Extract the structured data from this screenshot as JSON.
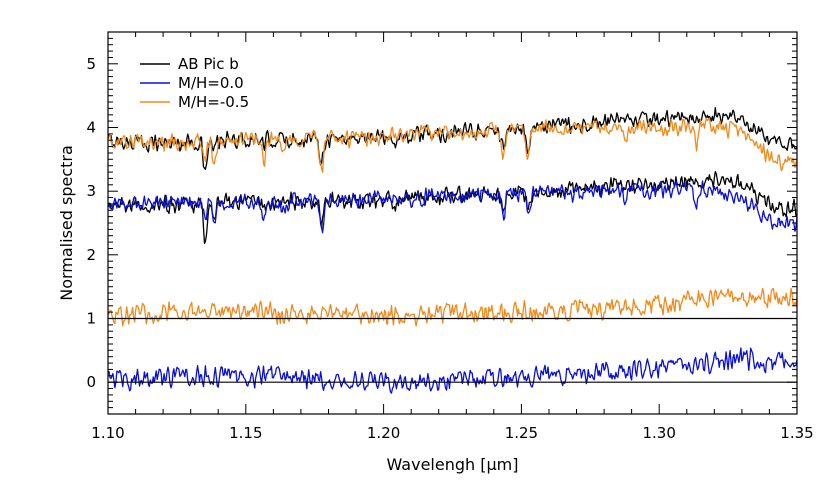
{
  "chart_data": {
    "type": "line",
    "xlabel": "Wavelengh [μm]",
    "ylabel": "Normalised spectra",
    "xlim": [
      1.1,
      1.35
    ],
    "ylim": [
      -0.5,
      5.5
    ],
    "x_ticks": [
      "1.10",
      "1.15",
      "1.20",
      "1.25",
      "1.30",
      "1.35"
    ],
    "y_ticks": [
      "0",
      "1",
      "2",
      "3",
      "4",
      "5"
    ],
    "grid": false,
    "legend_position": "top-left",
    "colors": {
      "object": "#000000",
      "solar": "#0a10d8",
      "low": "#f08a1c",
      "frame": "#000000"
    },
    "legend": [
      {
        "name": "AB Pic b",
        "color": "#000000"
      },
      {
        "name": "M/H=0.0",
        "color": "#0a10d8"
      },
      {
        "name": "M/H=-0.5",
        "color": "#f08a1c"
      }
    ],
    "reference_lines": [
      0,
      1
    ],
    "series": [
      {
        "name": "AB Pic b",
        "color": "#000000",
        "group": "upper",
        "profile": [
          [
            1.1,
            3.78
          ],
          [
            1.12,
            3.76
          ],
          [
            1.15,
            3.8
          ],
          [
            1.18,
            3.82
          ],
          [
            1.2,
            3.85
          ],
          [
            1.22,
            3.9
          ],
          [
            1.25,
            3.98
          ],
          [
            1.28,
            4.08
          ],
          [
            1.3,
            4.12
          ],
          [
            1.32,
            4.18
          ],
          [
            1.33,
            4.1
          ],
          [
            1.335,
            3.95
          ],
          [
            1.34,
            3.78
          ],
          [
            1.35,
            3.72
          ]
        ],
        "dips": [
          [
            1.1352,
            0.55
          ],
          [
            1.1385,
            0.15
          ],
          [
            1.1565,
            0.1
          ],
          [
            1.1775,
            0.3
          ],
          [
            1.2045,
            0.1
          ],
          [
            1.2435,
            0.3
          ],
          [
            1.2525,
            0.3
          ]
        ]
      },
      {
        "name": "M/H=-0.5",
        "color": "#f08a1c",
        "group": "upper",
        "profile": [
          [
            1.1,
            3.78
          ],
          [
            1.12,
            3.76
          ],
          [
            1.15,
            3.8
          ],
          [
            1.18,
            3.82
          ],
          [
            1.2,
            3.85
          ],
          [
            1.22,
            3.9
          ],
          [
            1.25,
            3.96
          ],
          [
            1.28,
            4.0
          ],
          [
            1.3,
            4.0
          ],
          [
            1.32,
            4.02
          ],
          [
            1.33,
            3.92
          ],
          [
            1.335,
            3.72
          ],
          [
            1.34,
            3.5
          ],
          [
            1.35,
            3.42
          ]
        ],
        "dips": [
          [
            1.1352,
            0.3
          ],
          [
            1.1385,
            0.25
          ],
          [
            1.1565,
            0.3
          ],
          [
            1.1635,
            0.2
          ],
          [
            1.1775,
            0.45
          ],
          [
            1.2435,
            0.4
          ],
          [
            1.2525,
            0.4
          ],
          [
            1.2875,
            0.2
          ],
          [
            1.3135,
            0.25
          ]
        ]
      },
      {
        "name": "AB Pic b",
        "color": "#000000",
        "group": "lower",
        "profile": [
          [
            1.1,
            2.8
          ],
          [
            1.12,
            2.78
          ],
          [
            1.15,
            2.82
          ],
          [
            1.18,
            2.85
          ],
          [
            1.2,
            2.86
          ],
          [
            1.22,
            2.92
          ],
          [
            1.25,
            2.98
          ],
          [
            1.28,
            3.08
          ],
          [
            1.3,
            3.12
          ],
          [
            1.32,
            3.18
          ],
          [
            1.33,
            3.1
          ],
          [
            1.335,
            2.95
          ],
          [
            1.34,
            2.78
          ],
          [
            1.35,
            2.72
          ]
        ],
        "dips": [
          [
            1.1352,
            0.65
          ],
          [
            1.1385,
            0.15
          ],
          [
            1.1565,
            0.1
          ],
          [
            1.1775,
            0.3
          ],
          [
            1.2045,
            0.1
          ],
          [
            1.2435,
            0.3
          ],
          [
            1.2525,
            0.3
          ]
        ]
      },
      {
        "name": "M/H=0.0",
        "color": "#0a10d8",
        "group": "lower",
        "profile": [
          [
            1.1,
            2.82
          ],
          [
            1.12,
            2.8
          ],
          [
            1.15,
            2.82
          ],
          [
            1.18,
            2.85
          ],
          [
            1.2,
            2.88
          ],
          [
            1.22,
            2.92
          ],
          [
            1.25,
            2.96
          ],
          [
            1.28,
            3.0
          ],
          [
            1.3,
            3.02
          ],
          [
            1.32,
            3.02
          ],
          [
            1.33,
            2.9
          ],
          [
            1.335,
            2.7
          ],
          [
            1.34,
            2.55
          ],
          [
            1.35,
            2.45
          ]
        ],
        "dips": [
          [
            1.1352,
            0.3
          ],
          [
            1.1385,
            0.25
          ],
          [
            1.1565,
            0.3
          ],
          [
            1.1635,
            0.2
          ],
          [
            1.1775,
            0.45
          ],
          [
            1.2435,
            0.35
          ],
          [
            1.2525,
            0.4
          ],
          [
            1.2875,
            0.2
          ],
          [
            1.3135,
            0.25
          ]
        ]
      },
      {
        "name": "M/H=-0.5",
        "color": "#f08a1c",
        "group": "residual",
        "profile": [
          [
            1.1,
            1.08
          ],
          [
            1.15,
            1.1
          ],
          [
            1.2,
            1.06
          ],
          [
            1.25,
            1.1
          ],
          [
            1.28,
            1.16
          ],
          [
            1.3,
            1.22
          ],
          [
            1.32,
            1.28
          ],
          [
            1.33,
            1.38
          ],
          [
            1.34,
            1.3
          ],
          [
            1.35,
            1.32
          ]
        ],
        "dips": []
      },
      {
        "name": "M/H=0.0",
        "color": "#0a10d8",
        "group": "residual",
        "profile": [
          [
            1.1,
            0.05
          ],
          [
            1.15,
            0.1
          ],
          [
            1.2,
            0.0
          ],
          [
            1.25,
            0.08
          ],
          [
            1.28,
            0.15
          ],
          [
            1.3,
            0.22
          ],
          [
            1.32,
            0.3
          ],
          [
            1.33,
            0.38
          ],
          [
            1.34,
            0.3
          ],
          [
            1.35,
            0.32
          ]
        ],
        "dips": []
      }
    ]
  }
}
